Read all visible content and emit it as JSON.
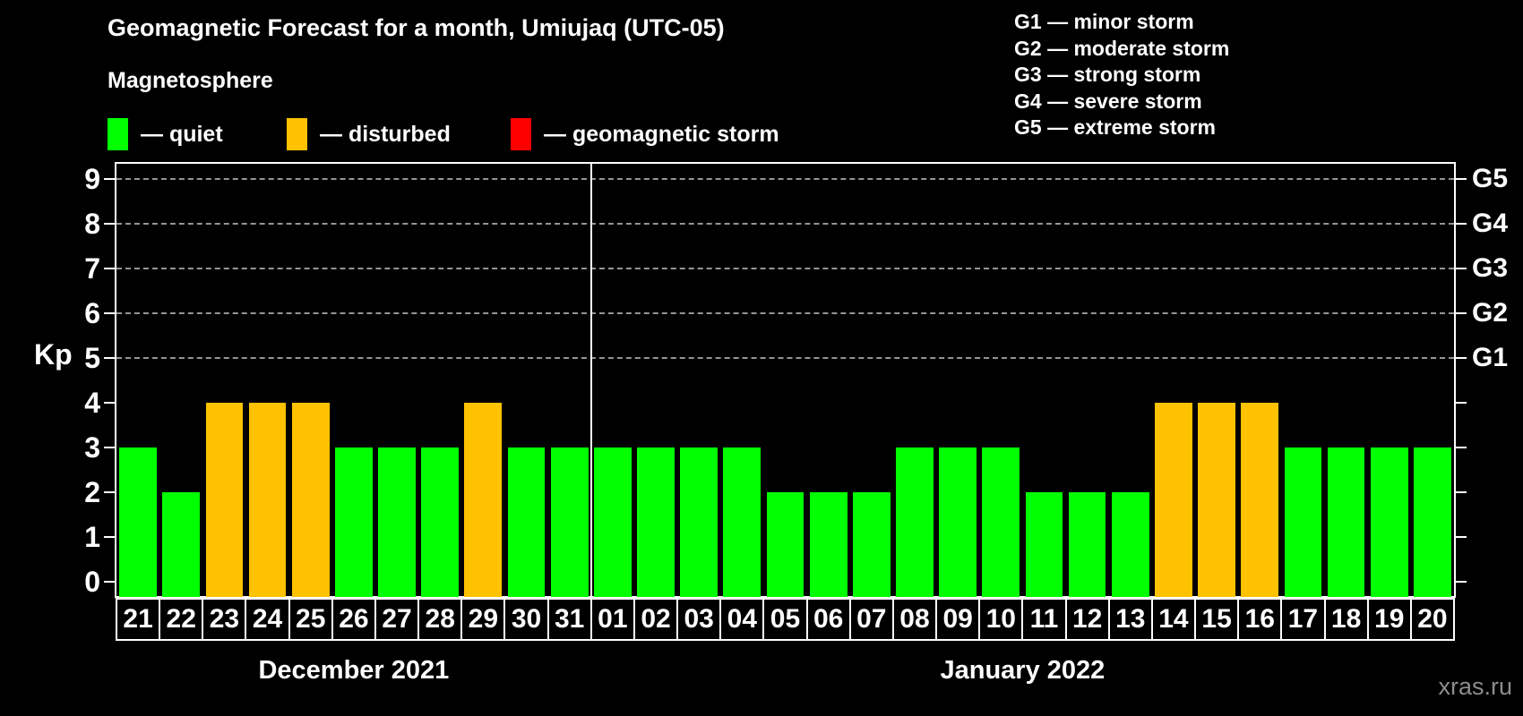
{
  "title": "Geomagnetic Forecast for a month, Umiujaq (UTC-05)",
  "subtitle": "Magnetosphere",
  "legend": {
    "items": [
      {
        "key": "quiet",
        "label": "— quiet",
        "color": "#00ff00",
        "x": 120
      },
      {
        "key": "disturbed",
        "label": "— disturbed",
        "color": "#ffc200",
        "x": 320
      },
      {
        "key": "storm",
        "label": "— geomagnetic storm",
        "color": "#ff0000",
        "x": 570
      }
    ]
  },
  "g_legend": [
    "G1 — minor storm",
    "G2 — moderate storm",
    "G3 — strong storm",
    "G4 — severe storm",
    "G5 — extreme storm"
  ],
  "watermark": "xras.ru",
  "chart_data": {
    "type": "bar",
    "title": "Geomagnetic Forecast for a month, Umiujaq (UTC-05)",
    "ylabel": "Kp",
    "ylim": [
      0,
      9
    ],
    "y_ticks": [
      0,
      1,
      2,
      3,
      4,
      5,
      6,
      7,
      8,
      9
    ],
    "gridlines_at_kp": [
      5,
      6,
      7,
      8,
      9
    ],
    "grid": "dashed-horizontal",
    "right_axis": [
      {
        "label": "G1",
        "kp": 5
      },
      {
        "label": "G2",
        "kp": 6
      },
      {
        "label": "G3",
        "kp": 7
      },
      {
        "label": "G4",
        "kp": 8
      },
      {
        "label": "G5",
        "kp": 9
      }
    ],
    "state_colors": {
      "quiet": "#00ff00",
      "disturbed": "#ffc200",
      "storm": "#ff0000"
    },
    "months": [
      {
        "label": "December 2021",
        "days": 11
      },
      {
        "label": "January 2022",
        "days": 20
      }
    ],
    "days": [
      {
        "day": "21",
        "kp": 3,
        "state": "quiet"
      },
      {
        "day": "22",
        "kp": 2,
        "state": "quiet"
      },
      {
        "day": "23",
        "kp": 4,
        "state": "disturbed"
      },
      {
        "day": "24",
        "kp": 4,
        "state": "disturbed"
      },
      {
        "day": "25",
        "kp": 4,
        "state": "disturbed"
      },
      {
        "day": "26",
        "kp": 3,
        "state": "quiet"
      },
      {
        "day": "27",
        "kp": 3,
        "state": "quiet"
      },
      {
        "day": "28",
        "kp": 3,
        "state": "quiet"
      },
      {
        "day": "29",
        "kp": 4,
        "state": "disturbed"
      },
      {
        "day": "30",
        "kp": 3,
        "state": "quiet"
      },
      {
        "day": "31",
        "kp": 3,
        "state": "quiet"
      },
      {
        "day": "01",
        "kp": 3,
        "state": "quiet"
      },
      {
        "day": "02",
        "kp": 3,
        "state": "quiet"
      },
      {
        "day": "03",
        "kp": 3,
        "state": "quiet"
      },
      {
        "day": "04",
        "kp": 3,
        "state": "quiet"
      },
      {
        "day": "05",
        "kp": 2,
        "state": "quiet"
      },
      {
        "day": "06",
        "kp": 2,
        "state": "quiet"
      },
      {
        "day": "07",
        "kp": 2,
        "state": "quiet"
      },
      {
        "day": "08",
        "kp": 3,
        "state": "quiet"
      },
      {
        "day": "09",
        "kp": 3,
        "state": "quiet"
      },
      {
        "day": "10",
        "kp": 3,
        "state": "quiet"
      },
      {
        "day": "11",
        "kp": 2,
        "state": "quiet"
      },
      {
        "day": "12",
        "kp": 2,
        "state": "quiet"
      },
      {
        "day": "13",
        "kp": 2,
        "state": "quiet"
      },
      {
        "day": "14",
        "kp": 4,
        "state": "disturbed"
      },
      {
        "day": "15",
        "kp": 4,
        "state": "disturbed"
      },
      {
        "day": "16",
        "kp": 4,
        "state": "disturbed"
      },
      {
        "day": "17",
        "kp": 3,
        "state": "quiet"
      },
      {
        "day": "18",
        "kp": 3,
        "state": "quiet"
      },
      {
        "day": "19",
        "kp": 3,
        "state": "quiet"
      },
      {
        "day": "20",
        "kp": 3,
        "state": "quiet"
      }
    ]
  }
}
